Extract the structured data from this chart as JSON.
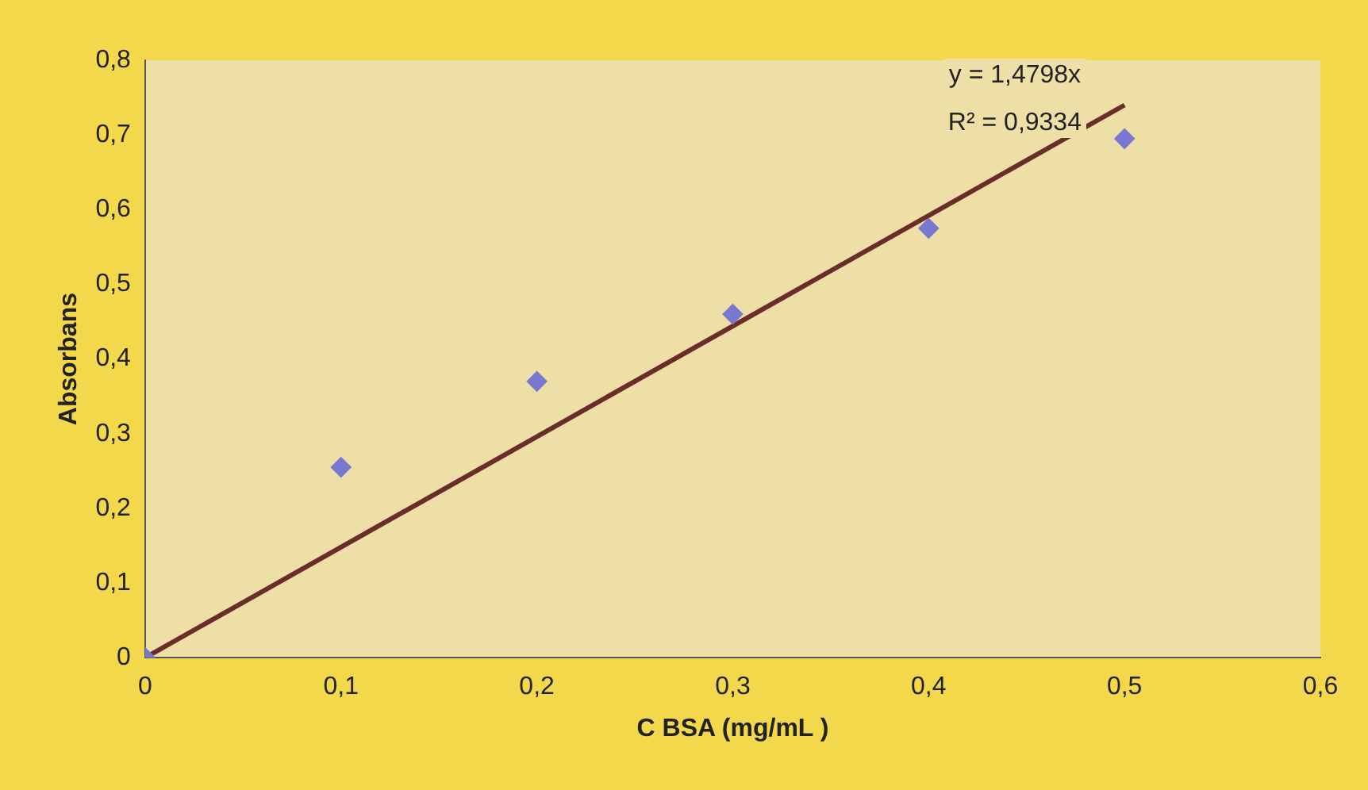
{
  "chart_data": {
    "type": "scatter",
    "xlabel": "C BSA (mg/mL )",
    "ylabel": "Absorbans",
    "xlim": [
      0,
      0.6
    ],
    "xticks": [
      0,
      {
        "value": 0.1,
        "label": "0,1"
      },
      {
        "value": 0.2,
        "label": "0,2"
      },
      {
        "value": 0.3,
        "label": "0,3"
      },
      {
        "value": 0.4,
        "label": "0,4"
      },
      {
        "value": 0.5,
        "label": "0,5"
      },
      {
        "value": 0.6,
        "label": "0,6"
      }
    ],
    "ylim": [
      0,
      0.8
    ],
    "yticks": [
      0,
      {
        "value": 0.1,
        "label": "0,1"
      },
      {
        "value": 0.2,
        "label": "0,2"
      },
      {
        "value": 0.3,
        "label": "0,3"
      },
      {
        "value": 0.4,
        "label": "0,4"
      },
      {
        "value": 0.5,
        "label": "0,5"
      },
      {
        "value": 0.6,
        "label": "0,6"
      },
      {
        "value": 0.7,
        "label": "0,7"
      },
      {
        "value": 0.8,
        "label": "0,8"
      }
    ],
    "grid": false,
    "legend": false,
    "marker": "diamond",
    "annotations": [
      "y = 1,4798x",
      "R² = 0,9334"
    ],
    "series": [
      {
        "type": "scatter",
        "color": "#7878d0",
        "x": [
          0,
          0.1,
          0.2,
          0.3,
          0.4,
          0.5
        ],
        "values": [
          0,
          0.255,
          0.37,
          0.46,
          0.575,
          0.695
        ]
      },
      {
        "type": "line",
        "color": "#6b2c2c",
        "x": [
          0,
          0.5
        ],
        "values": [
          0,
          0.74
        ],
        "marker": "none",
        "line_style": "solid"
      }
    ]
  }
}
